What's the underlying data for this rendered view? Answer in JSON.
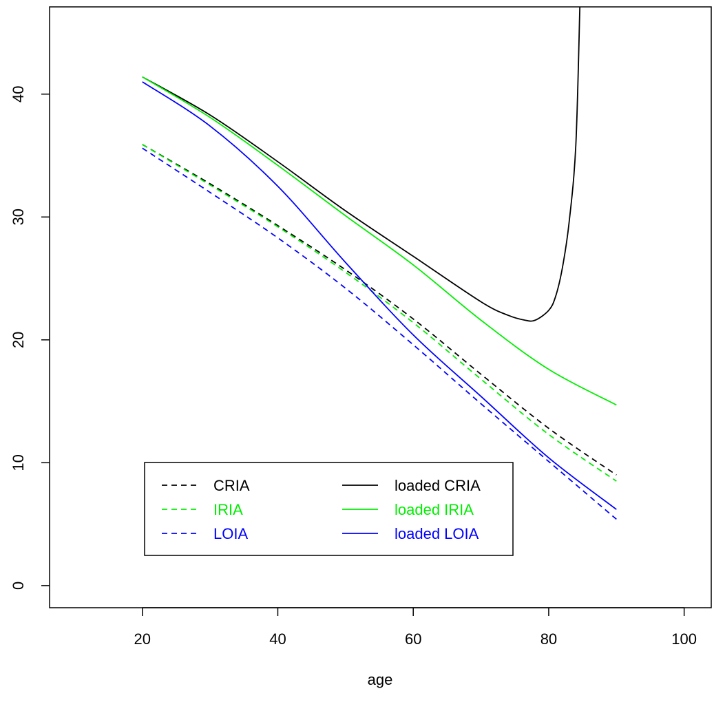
{
  "chart_data": {
    "type": "line",
    "title": "",
    "xlabel": "age",
    "ylabel": "",
    "xlim": [
      6.3,
      104
    ],
    "ylim": [
      -1.8,
      47.1
    ],
    "xticks": [
      20,
      40,
      60,
      80,
      100
    ],
    "xtick_labels": [
      "20",
      "40",
      "60",
      "80",
      "100"
    ],
    "yticks": [
      0,
      10,
      20,
      30,
      40
    ],
    "ytick_labels": [
      "0",
      "10",
      "20",
      "30",
      "40"
    ],
    "grid": false,
    "legend_position": "bottom-left",
    "legend_columns": 2,
    "series": [
      {
        "name": "CRIA",
        "color": "#000000",
        "style": "dashed",
        "x": [
          20,
          30,
          40,
          50,
          60,
          70,
          80,
          90
        ],
        "y": [
          35.9,
          32.7,
          29.3,
          25.7,
          21.7,
          17.2,
          12.8,
          9.0
        ]
      },
      {
        "name": "IRIA",
        "color": "#00ee00",
        "style": "dashed",
        "x": [
          20,
          30,
          40,
          50,
          60,
          70,
          80,
          90
        ],
        "y": [
          35.9,
          32.6,
          29.2,
          25.5,
          21.4,
          16.8,
          12.3,
          8.5
        ]
      },
      {
        "name": "LOIA",
        "color": "#0000ff",
        "style": "dashed",
        "x": [
          20,
          30,
          40,
          50,
          60,
          70,
          80,
          90
        ],
        "y": [
          35.6,
          32.0,
          28.3,
          24.2,
          19.6,
          14.8,
          10.1,
          5.4
        ]
      },
      {
        "name": "loaded CRIA",
        "color": "#000000",
        "style": "solid",
        "x": [
          20,
          30,
          40,
          50,
          60,
          70,
          74,
          76.5,
          78,
          80,
          81,
          82,
          83,
          84,
          84.6
        ],
        "y": [
          41.4,
          38.3,
          34.5,
          30.5,
          26.8,
          23.1,
          22.0,
          21.6,
          21.6,
          22.4,
          23.5,
          25.8,
          29.5,
          35.8,
          47.1
        ]
      },
      {
        "name": "loaded IRIA",
        "color": "#00ee00",
        "style": "solid",
        "x": [
          20,
          30,
          40,
          50,
          60,
          70,
          80,
          90
        ],
        "y": [
          41.4,
          38.1,
          34.2,
          30.1,
          26.1,
          21.6,
          17.6,
          14.7
        ]
      },
      {
        "name": "loaded LOIA",
        "color": "#0000ff",
        "style": "solid",
        "x": [
          20,
          30,
          40,
          50,
          60,
          70,
          80,
          90
        ],
        "y": [
          41.0,
          37.4,
          32.5,
          26.3,
          20.4,
          15.4,
          10.4,
          6.2
        ]
      }
    ]
  }
}
